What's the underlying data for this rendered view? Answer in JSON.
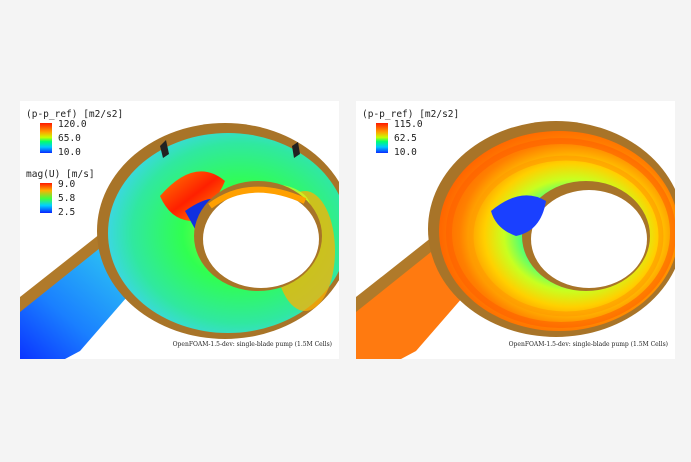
{
  "left_panel": {
    "pressure_legend": {
      "title": "(p-p_ref) [m2/s2]",
      "ticks": [
        "120.0",
        "65.0",
        "10.0"
      ]
    },
    "velocity_legend": {
      "title": "mag(U) [m/s]",
      "ticks": [
        "9.0",
        "5.8",
        "2.5"
      ]
    },
    "caption": "OpenFOAM-1.5-dev: single-blade pump (1.5M Cells)"
  },
  "right_panel": {
    "pressure_legend": {
      "title": "(p-p_ref) [m2/s2]",
      "ticks": [
        "115.0",
        "62.5",
        "10.0"
      ]
    },
    "caption": "OpenFOAM-1.5-dev: single-blade pump (1.5M Cells)"
  }
}
